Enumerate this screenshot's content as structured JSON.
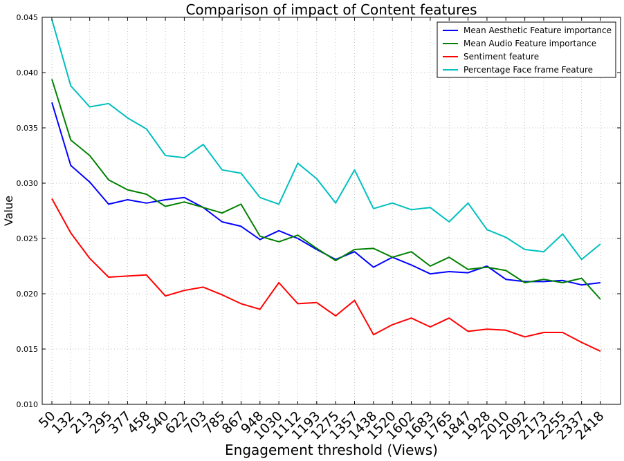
{
  "chart_data": {
    "type": "line",
    "title": "Comparison of impact of Content features",
    "xlabel": "Engagement threshold (Views)",
    "ylabel": "Value",
    "ylim": [
      0.01,
      0.045
    ],
    "yticks": [
      "0.010",
      "0.015",
      "0.020",
      "0.025",
      "0.030",
      "0.035",
      "0.040",
      "0.045"
    ],
    "yticks_values": [
      0.01,
      0.015,
      0.02,
      0.025,
      0.03,
      0.035,
      0.04,
      0.045
    ],
    "categories": [
      "50",
      "132",
      "213",
      "295",
      "377",
      "458",
      "540",
      "622",
      "703",
      "785",
      "867",
      "948",
      "1030",
      "1112",
      "1193",
      "1275",
      "1357",
      "1438",
      "1520",
      "1602",
      "1683",
      "1765",
      "1847",
      "1928",
      "2010",
      "2092",
      "2173",
      "2255",
      "2337",
      "2418"
    ],
    "grid": true,
    "legend_position": "top-right",
    "series": [
      {
        "name": "Mean Aesthetic Feature importance",
        "color": "#0000ff",
        "values": [
          0.0373,
          0.0316,
          0.0301,
          0.0281,
          0.0285,
          0.0282,
          0.0285,
          0.0287,
          0.0278,
          0.0265,
          0.0261,
          0.0249,
          0.0257,
          0.025,
          0.024,
          0.0231,
          0.0238,
          0.0224,
          0.0233,
          0.0226,
          0.0218,
          0.022,
          0.0219,
          0.0225,
          0.0213,
          0.0211,
          0.0211,
          0.0212,
          0.0208,
          0.021
        ]
      },
      {
        "name": "Mean Audio Feature importance",
        "color": "#008000",
        "values": [
          0.0394,
          0.0339,
          0.0325,
          0.0303,
          0.0294,
          0.029,
          0.0279,
          0.0283,
          0.0278,
          0.0273,
          0.0281,
          0.0252,
          0.0247,
          0.0253,
          0.0241,
          0.023,
          0.024,
          0.0241,
          0.0233,
          0.0238,
          0.0225,
          0.0233,
          0.0222,
          0.0224,
          0.0221,
          0.021,
          0.0213,
          0.021,
          0.0214,
          0.0195
        ]
      },
      {
        "name": "Sentiment feature",
        "color": "#ff0000",
        "values": [
          0.0286,
          0.0255,
          0.0232,
          0.0215,
          0.0216,
          0.0217,
          0.0198,
          0.0203,
          0.0206,
          0.0199,
          0.0191,
          0.0186,
          0.021,
          0.0191,
          0.0192,
          0.018,
          0.0194,
          0.0163,
          0.0172,
          0.0178,
          0.017,
          0.0178,
          0.0166,
          0.0168,
          0.0167,
          0.0161,
          0.0165,
          0.0165,
          0.0156,
          0.0148
        ]
      },
      {
        "name": "Percentage Face frame Feature",
        "color": "#00bfbf",
        "values": [
          0.0448,
          0.0388,
          0.0369,
          0.0372,
          0.0359,
          0.0349,
          0.0325,
          0.0323,
          0.0335,
          0.0312,
          0.0309,
          0.0287,
          0.0281,
          0.0318,
          0.0304,
          0.0282,
          0.0312,
          0.0277,
          0.0282,
          0.0276,
          0.0278,
          0.0265,
          0.0282,
          0.0258,
          0.0251,
          0.024,
          0.0238,
          0.0254,
          0.0231,
          0.0245
        ]
      }
    ]
  }
}
